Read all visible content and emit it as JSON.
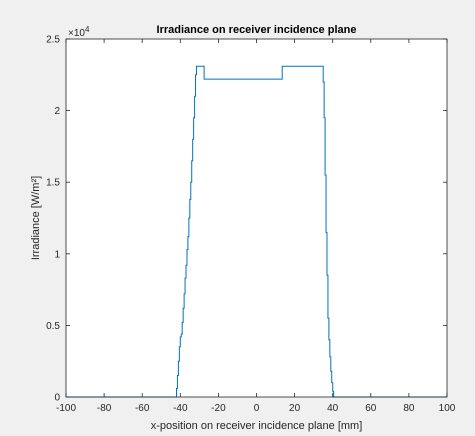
{
  "chart_data": {
    "type": "line",
    "title": "Irradiance on receiver incidence plane",
    "xlabel": "x-position on receiver incidence plane [mm]",
    "ylabel": "Irradiance [W/m²]",
    "exponent_label": "×10",
    "exponent_power": "4",
    "xlim": [
      -100,
      100
    ],
    "ylim": [
      0,
      25000
    ],
    "x_ticks": [
      -100,
      -80,
      -60,
      -40,
      -20,
      0,
      20,
      40,
      60,
      80,
      100
    ],
    "x_tick_labels": [
      "-100",
      "-80",
      "-60",
      "-40",
      "-20",
      "0",
      "20",
      "40",
      "60",
      "80",
      "100"
    ],
    "y_ticks": [
      0,
      5000,
      10000,
      15000,
      20000,
      25000
    ],
    "y_tick_labels": [
      "0",
      "0.5",
      "1",
      "1.5",
      "2",
      "2.5"
    ],
    "grid": false,
    "line_color": "#0072bd",
    "series": [
      {
        "x": [
          -100,
          -42,
          -42,
          -41.5,
          -41.5,
          -41,
          -41,
          -40.5,
          -40.5,
          -40,
          -40,
          -39.5,
          -39.5,
          -39,
          -39,
          -38.5,
          -38.5,
          -38,
          -38,
          -37.5,
          -37.5,
          -37,
          -37,
          -36.5,
          -36.5,
          -36,
          -36,
          -35.5,
          -35.5,
          -35,
          -35,
          -34.5,
          -34.5,
          -34,
          -34,
          -33.5,
          -33.5,
          -33,
          -33,
          -32.5,
          -32.5,
          -32,
          -32,
          -31.5,
          -31.5,
          -31,
          -31,
          -30.5,
          -30.5,
          -30,
          -30,
          -29.5,
          -29.5,
          -28.5,
          -28.5,
          -27.5,
          -27.5,
          13.5,
          13.5,
          35,
          35,
          35.5,
          35.5,
          36,
          36,
          36.5,
          36.5,
          37,
          37,
          37.5,
          37.5,
          38,
          38,
          38.5,
          38.5,
          39,
          39,
          39.5,
          39.5,
          40,
          40,
          40.5,
          40.5,
          100
        ],
        "y": [
          0,
          0,
          600,
          600,
          1500,
          1500,
          2500,
          2500,
          3500,
          3500,
          4200,
          4200,
          4400,
          4400,
          5200,
          5200,
          6200,
          6200,
          7200,
          7200,
          8300,
          8300,
          9200,
          9200,
          10300,
          10300,
          11200,
          11200,
          12500,
          12500,
          13800,
          13800,
          15000,
          15000,
          16500,
          16500,
          18000,
          18000,
          19500,
          19500,
          21000,
          21000,
          22500,
          22500,
          23100,
          23100,
          23100,
          23100,
          23100,
          23100,
          23100,
          23100,
          23100,
          23100,
          23100,
          23100,
          22200,
          22200,
          23100,
          23100,
          22000,
          22000,
          19500,
          19500,
          15500,
          15500,
          11500,
          11500,
          8500,
          8500,
          5500,
          5500,
          4000,
          4000,
          2800,
          2800,
          1800,
          1800,
          1000,
          1000,
          400,
          400,
          0,
          0
        ]
      }
    ]
  }
}
